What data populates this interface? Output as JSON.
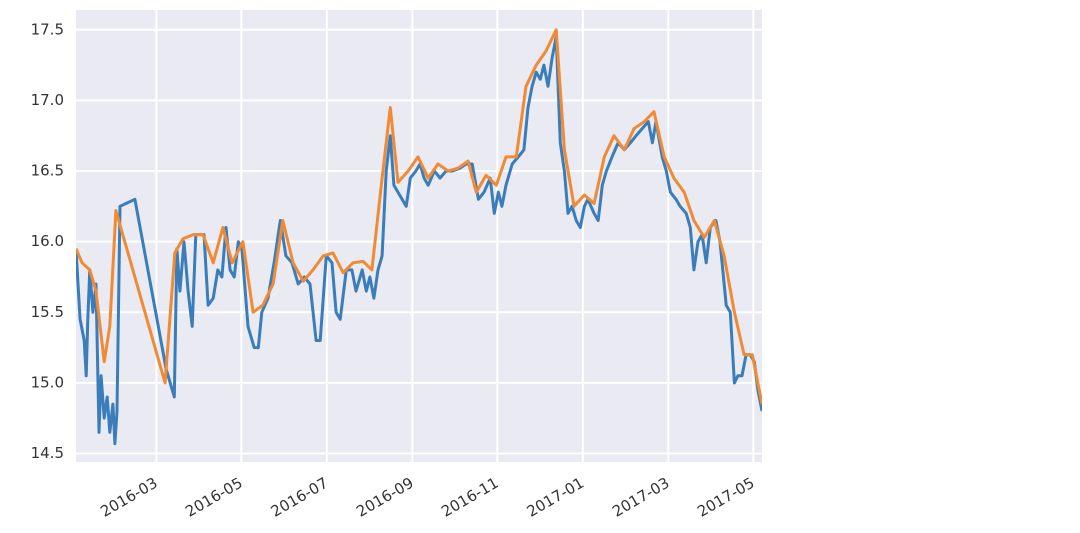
{
  "chart_data": {
    "type": "line",
    "series": [
      {
        "color": "#3a7dbb",
        "x": [
          2016.01,
          2016.014,
          2016.018,
          2016.026,
          2016.03,
          2016.033,
          2016.037,
          2016.043,
          2016.049,
          2016.055,
          2016.059,
          2016.065,
          2016.071,
          2016.076,
          2016.082,
          2016.086,
          2016.09,
          2016.096,
          2016.125,
          2016.186,
          2016.194,
          2016.202,
          2016.207,
          2016.213,
          2016.221,
          2016.229,
          2016.237,
          2016.244,
          2016.26,
          2016.268,
          2016.278,
          2016.287,
          2016.295,
          2016.303,
          2016.311,
          2016.319,
          2016.327,
          2016.334,
          2016.346,
          2016.358,
          2016.366,
          2016.373,
          2016.385,
          2016.397,
          2016.409,
          2016.42,
          2016.432,
          2016.444,
          2016.456,
          2016.467,
          2016.479,
          2016.487,
          2016.499,
          2016.51,
          2016.518,
          2016.526,
          2016.538,
          2016.549,
          2016.557,
          2016.569,
          2016.577,
          2016.584,
          2016.592,
          2016.6,
          2016.608,
          2016.616,
          2016.624,
          2016.631,
          2016.639,
          2016.647,
          2016.655,
          2016.663,
          2016.674,
          2016.682,
          2016.69,
          2016.698,
          2016.71,
          2016.721,
          2016.733,
          2016.745,
          2016.76,
          2016.772,
          2016.784,
          2016.796,
          2016.807,
          2016.819,
          2016.827,
          2016.835,
          2016.842,
          2016.85,
          2016.862,
          2016.874,
          2016.885,
          2016.893,
          2016.901,
          2016.909,
          2016.917,
          2016.924,
          2016.932,
          2016.94,
          2016.948,
          2016.956,
          2016.964,
          2016.971,
          2016.979,
          2016.987,
          2016.995,
          2017.003,
          2017.01,
          2017.022,
          2017.03,
          2017.038,
          2017.046,
          2017.057,
          2017.069,
          2017.081,
          2017.093,
          2017.104,
          2017.116,
          2017.128,
          2017.136,
          2017.143,
          2017.155,
          2017.163,
          2017.171,
          2017.182,
          2017.19,
          2017.202,
          2017.21,
          2017.217,
          2017.225,
          2017.233,
          2017.241,
          2017.249,
          2017.26,
          2017.268,
          2017.28,
          2017.288,
          2017.296,
          2017.303,
          2017.311,
          2017.319,
          2017.327,
          2017.335,
          2017.342,
          2017.35
        ],
        "values": [
          15.95,
          15.7,
          15.45,
          15.3,
          15.05,
          15.45,
          15.8,
          15.5,
          15.7,
          14.65,
          15.05,
          14.75,
          14.9,
          14.65,
          14.85,
          14.57,
          14.8,
          16.25,
          16.3,
          15.1,
          15.0,
          14.9,
          15.95,
          15.65,
          16.0,
          15.65,
          15.4,
          16.05,
          16.05,
          15.55,
          15.6,
          15.8,
          15.75,
          16.1,
          15.8,
          15.75,
          16.0,
          15.95,
          15.4,
          15.25,
          15.25,
          15.5,
          15.6,
          15.85,
          16.15,
          15.9,
          15.85,
          15.7,
          15.75,
          15.7,
          15.3,
          15.3,
          15.9,
          15.85,
          15.5,
          15.45,
          15.8,
          15.8,
          15.65,
          15.8,
          15.65,
          15.75,
          15.6,
          15.8,
          15.9,
          16.5,
          16.75,
          16.4,
          16.35,
          16.3,
          16.25,
          16.45,
          16.5,
          16.55,
          16.45,
          16.4,
          16.5,
          16.45,
          16.5,
          16.5,
          16.52,
          16.55,
          16.55,
          16.3,
          16.35,
          16.45,
          16.2,
          16.35,
          16.25,
          16.4,
          16.55,
          16.6,
          16.65,
          16.95,
          17.1,
          17.2,
          17.15,
          17.25,
          17.1,
          17.3,
          17.45,
          16.7,
          16.5,
          16.2,
          16.25,
          16.15,
          16.1,
          16.25,
          16.3,
          16.2,
          16.15,
          16.4,
          16.5,
          16.6,
          16.7,
          16.65,
          16.7,
          16.75,
          16.8,
          16.85,
          16.7,
          16.85,
          16.6,
          16.5,
          16.35,
          16.3,
          16.25,
          16.2,
          16.1,
          15.8,
          16.0,
          16.05,
          15.85,
          16.1,
          16.15,
          16.0,
          15.55,
          15.5,
          15.0,
          15.05,
          15.05,
          15.2,
          15.2,
          15.15,
          14.95,
          14.8
        ]
      },
      {
        "color": "#f08a35",
        "x": [
          2016.01,
          2016.022,
          2016.037,
          2016.049,
          2016.065,
          2016.076,
          2016.088,
          2016.184,
          2016.203,
          2016.219,
          2016.239,
          2016.258,
          2016.278,
          2016.297,
          2016.315,
          2016.336,
          2016.356,
          2016.375,
          2016.395,
          2016.414,
          2016.434,
          2016.454,
          2016.473,
          2016.493,
          2016.512,
          2016.532,
          2016.551,
          2016.571,
          2016.588,
          2016.608,
          2016.624,
          2016.639,
          2016.659,
          2016.678,
          2016.698,
          2016.717,
          2016.737,
          2016.756,
          2016.776,
          2016.792,
          2016.811,
          2016.831,
          2016.85,
          2016.87,
          2016.889,
          2016.909,
          2016.928,
          2016.948,
          2016.964,
          2016.983,
          2017.003,
          2017.022,
          2017.042,
          2017.061,
          2017.081,
          2017.1,
          2017.12,
          2017.139,
          2017.159,
          2017.178,
          2017.198,
          2017.217,
          2017.237,
          2017.257,
          2017.276,
          2017.296,
          2017.315,
          2017.331,
          2017.35
        ],
        "values": [
          15.95,
          15.85,
          15.8,
          15.65,
          15.15,
          15.4,
          16.22,
          15.0,
          15.92,
          16.02,
          16.05,
          16.05,
          15.85,
          16.1,
          15.85,
          16.0,
          15.5,
          15.55,
          15.7,
          16.15,
          15.85,
          15.72,
          15.8,
          15.9,
          15.92,
          15.78,
          15.85,
          15.86,
          15.8,
          16.45,
          16.95,
          16.42,
          16.5,
          16.6,
          16.45,
          16.55,
          16.5,
          16.52,
          16.57,
          16.35,
          16.47,
          16.4,
          16.6,
          16.6,
          17.1,
          17.25,
          17.35,
          17.5,
          16.65,
          16.25,
          16.33,
          16.27,
          16.6,
          16.75,
          16.65,
          16.8,
          16.85,
          16.92,
          16.6,
          16.45,
          16.35,
          16.15,
          16.03,
          16.15,
          15.9,
          15.5,
          15.2,
          15.2,
          14.85
        ]
      }
    ],
    "xlim": [
      2016.01,
      2017.35
    ],
    "xticks": [
      {
        "value": 2016.167,
        "label": "2016-03"
      },
      {
        "value": 2016.333,
        "label": "2016-05"
      },
      {
        "value": 2016.5,
        "label": "2016-07"
      },
      {
        "value": 2016.667,
        "label": "2016-09"
      },
      {
        "value": 2016.833,
        "label": "2016-11"
      },
      {
        "value": 2017.0,
        "label": "2017-01"
      },
      {
        "value": 2017.167,
        "label": "2017-03"
      },
      {
        "value": 2017.333,
        "label": "2017-05"
      }
    ],
    "ylim": [
      14.44,
      17.64
    ],
    "yticks": [
      14.5,
      {
        "value": 15.0,
        "label": "15.0"
      },
      15.5,
      {
        "value": 16.0,
        "label": "16.0"
      },
      16.5,
      {
        "value": 17.0,
        "label": "17.0"
      },
      17.5
    ],
    "grid": true
  }
}
